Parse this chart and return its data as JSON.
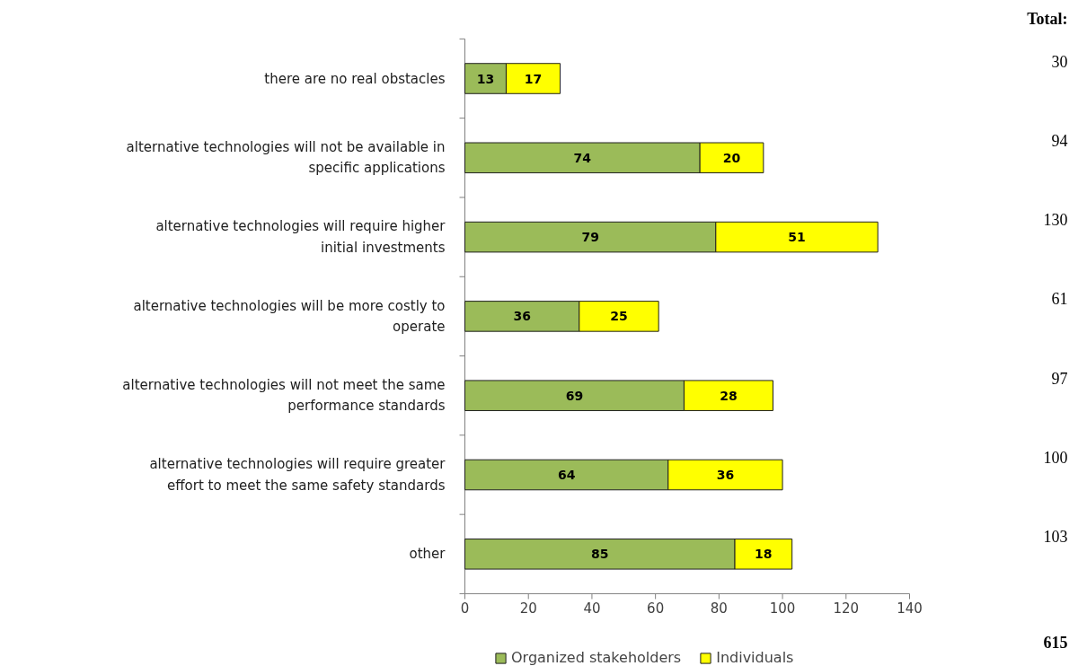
{
  "chart_data": {
    "type": "bar",
    "orientation": "horizontal",
    "stacked": true,
    "categories": [
      "there are no real obstacles",
      "alternative technologies will not be available in specific applications",
      "alternative technologies will require higher initial investments",
      "alternative technologies will be more costly to operate",
      "alternative technologies will not meet the same performance standards",
      "alternative technologies will require greater effort to meet the same safety standards",
      "other"
    ],
    "series": [
      {
        "name": "Organized stakeholders",
        "color": "#9bbb59",
        "values": [
          13,
          74,
          79,
          36,
          69,
          64,
          85
        ]
      },
      {
        "name": "Individuals",
        "color": "#ffff00",
        "values": [
          17,
          20,
          51,
          25,
          28,
          36,
          18
        ]
      }
    ],
    "xlim": [
      0,
      140
    ],
    "xticks": [
      0,
      20,
      40,
      60,
      80,
      100,
      120,
      140
    ],
    "data_labels": true,
    "annotations": [
      "Total:",
      "30",
      "94",
      "130",
      "61",
      "97",
      "100",
      "103",
      "615"
    ],
    "legend": "bottom",
    "grid": false
  }
}
